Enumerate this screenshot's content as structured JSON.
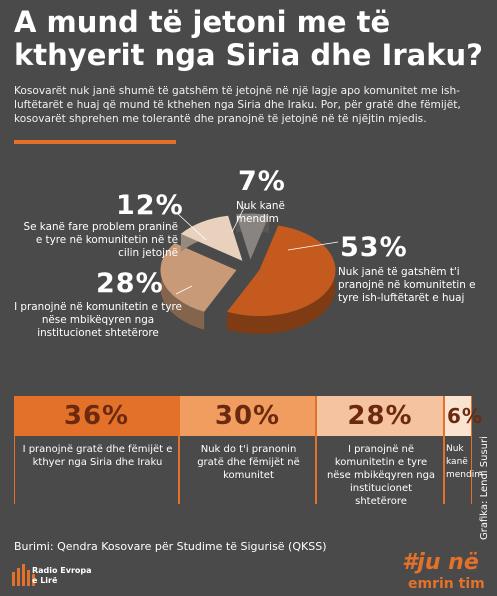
{
  "title_line1": "A mund të jetoni me të",
  "title_line2": "kthyerit nga Siria dhe Iraku?",
  "lead": "Kosovarët nuk janë shumë të gatshëm të jetojnë në një lagje apo komunitet me ish-luftëtarët e huaj që mund të kthehen nga Siria dhe Iraku. Por, për gratë dhe fëmijët, kosovarët shprehen me tolerantë dhe pranojnë të jetojnë në të njëjtin mjedis.",
  "colors": {
    "background": "#4a4a4a",
    "accent": "#e3712a",
    "slice_53": "#c45a1e",
    "slice_28": "#c99a77",
    "slice_12": "#e9d2bd",
    "slice_7": "#8a8480",
    "bar_36": "#e3712a",
    "bar_30": "#f09d5f",
    "bar_28": "#f6c3a0",
    "bar_6": "#fbe3d1"
  },
  "chart_data": [
    {
      "type": "pie",
      "title": "",
      "slices": [
        {
          "value": 53,
          "label_pct": "53%",
          "label": "Nuk janë të gatshëm t'i pranojnë në komunitetin e tyre ish-luftëtarët e huaj"
        },
        {
          "value": 28,
          "label_pct": "28%",
          "label": "I pranojnë në komunitetin e tyre nëse mbikëqyren nga institucionet shtetërore"
        },
        {
          "value": 12,
          "label_pct": "12%",
          "label": "Se kanë fare problem praninë e tyre në komunitetin në të cilin jetojnë"
        },
        {
          "value": 7,
          "label_pct": "7%",
          "label": "Nuk kanë mendim"
        }
      ]
    },
    {
      "type": "bar",
      "title": "",
      "categories": [
        "I pranojnë gratë dhe fëmijët e kthyer nga Siria dhe Iraku",
        "Nuk do t'i pranonin gratë dhe fëmijët në komunitet",
        "I pranojnë në komunitetin e tyre nëse mbikëqyren nga institucionet shtetërore",
        "Nuk kanë mendim"
      ],
      "values": [
        36,
        30,
        28,
        6
      ],
      "value_labels": [
        "36%",
        "30%",
        "28%",
        "6%"
      ]
    }
  ],
  "pie_labels": {
    "p53": "53%",
    "t53": "Nuk janë të gatshëm t'i pranojnë në komunitetin e tyre ish-luftëtarët e huaj",
    "p28": "28%",
    "t28": "I pranojnë në komunitetin e tyre nëse mbikëqyren nga institucionet shtetërore",
    "p12": "12%",
    "t12": "Se kanë fare problem praninë e tyre në komunitetin në të cilin jetojnë",
    "p7": "7%",
    "t7": "Nuk kanë mendim"
  },
  "source": "Burimi: Qendra Kosovare për Studime të Sigurisë (QKSS)",
  "credit": "Grafika: Lendi Susuri",
  "rfe": {
    "line1": "Radio Evropa",
    "line2": "e Lirë"
  },
  "hashtag": {
    "line1": "#ju në",
    "line2": "emrin tim"
  }
}
